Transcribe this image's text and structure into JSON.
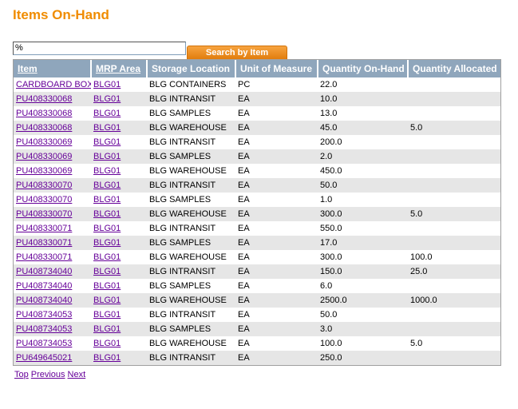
{
  "page": {
    "title": "Items On-Hand"
  },
  "search": {
    "value": "%",
    "button_label": "Search by Item"
  },
  "table": {
    "headers": [
      "Item",
      "MRP Area",
      "Storage Location",
      "Unit of Measure",
      "Quantity On-Hand",
      "Quantity Allocated"
    ],
    "rows": [
      [
        "CARDBOARD BOX",
        "BLG01",
        "BLG CONTAINERS",
        "PC",
        "22.0",
        ""
      ],
      [
        "PU408330068",
        "BLG01",
        "BLG INTRANSIT",
        "EA",
        "10.0",
        ""
      ],
      [
        "PU408330068",
        "BLG01",
        "BLG SAMPLES",
        "EA",
        "13.0",
        ""
      ],
      [
        "PU408330068",
        "BLG01",
        "BLG WAREHOUSE",
        "EA",
        "45.0",
        "5.0"
      ],
      [
        "PU408330069",
        "BLG01",
        "BLG INTRANSIT",
        "EA",
        "200.0",
        ""
      ],
      [
        "PU408330069",
        "BLG01",
        "BLG SAMPLES",
        "EA",
        "2.0",
        ""
      ],
      [
        "PU408330069",
        "BLG01",
        "BLG WAREHOUSE",
        "EA",
        "450.0",
        ""
      ],
      [
        "PU408330070",
        "BLG01",
        "BLG INTRANSIT",
        "EA",
        "50.0",
        ""
      ],
      [
        "PU408330070",
        "BLG01",
        "BLG SAMPLES",
        "EA",
        "1.0",
        ""
      ],
      [
        "PU408330070",
        "BLG01",
        "BLG WAREHOUSE",
        "EA",
        "300.0",
        "5.0"
      ],
      [
        "PU408330071",
        "BLG01",
        "BLG INTRANSIT",
        "EA",
        "550.0",
        ""
      ],
      [
        "PU408330071",
        "BLG01",
        "BLG SAMPLES",
        "EA",
        "17.0",
        ""
      ],
      [
        "PU408330071",
        "BLG01",
        "BLG WAREHOUSE",
        "EA",
        "300.0",
        "100.0"
      ],
      [
        "PU408734040",
        "BLG01",
        "BLG INTRANSIT",
        "EA",
        "150.0",
        "25.0"
      ],
      [
        "PU408734040",
        "BLG01",
        "BLG SAMPLES",
        "EA",
        "6.0",
        ""
      ],
      [
        "PU408734040",
        "BLG01",
        "BLG WAREHOUSE",
        "EA",
        "2500.0",
        "1000.0"
      ],
      [
        "PU408734053",
        "BLG01",
        "BLG INTRANSIT",
        "EA",
        "50.0",
        ""
      ],
      [
        "PU408734053",
        "BLG01",
        "BLG SAMPLES",
        "EA",
        "3.0",
        ""
      ],
      [
        "PU408734053",
        "BLG01",
        "BLG WAREHOUSE",
        "EA",
        "100.0",
        "5.0"
      ],
      [
        "PU649645021",
        "BLG01",
        "BLG INTRANSIT",
        "EA",
        "250.0",
        ""
      ]
    ]
  },
  "pager": {
    "top": "Top",
    "previous": "Previous",
    "next": "Next"
  },
  "colors": {
    "title": "#f08c00",
    "header_bg": "#8fa6bc",
    "link": "#660099",
    "button": "#e88a1a",
    "alt_row": "#e6e6e6"
  }
}
